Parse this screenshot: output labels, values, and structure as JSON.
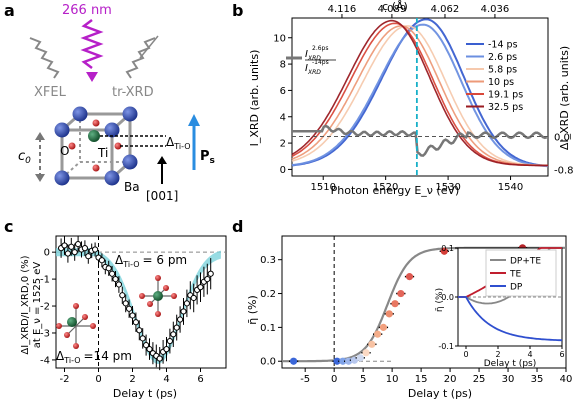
{
  "panel_labels": {
    "a": "a",
    "b": "b",
    "c": "c",
    "d": "d"
  },
  "panel_a": {
    "beam_label": "266 nm",
    "source_left": "XFEL",
    "source_right": "tr-XRD",
    "lattice_param": "c",
    "lattice_param_sub": "0",
    "atoms": [
      "O",
      "Ti",
      "Ba"
    ],
    "displacement_label": "Δ",
    "displacement_sub": "Ti-O",
    "polarization_label": "P",
    "polarization_sub": "s",
    "direction_label": "[001]",
    "colors": {
      "beam": "#b620c8",
      "ba": "#1f3fa8",
      "ti": "#1a6b3a",
      "o": "#d21f1f",
      "arrow_p": "#2a8de0",
      "xray": "#888888"
    }
  },
  "chart_data": [
    {
      "panel": "b",
      "type": "line",
      "xlabel": "Photon energy E_ν (eV)",
      "ylabel": "I_XRD (arb. units)",
      "y2label": "ΔI_XRD (arb. units)",
      "top_axis_label": "c (Å)",
      "top_ticks": [
        "4.116",
        "4.089",
        "4.062",
        "4.036"
      ],
      "xlim": [
        1505,
        1546
      ],
      "ylim": [
        -0.5,
        11.5
      ],
      "x_ticks": [
        1510,
        1520,
        1530,
        1540
      ],
      "y_ticks": [
        0,
        2,
        4,
        6,
        8,
        10
      ],
      "y2_ticks": [
        "0.0",
        "-0.8"
      ],
      "series": [
        {
          "name": "-14 ps",
          "color": "#3a5fd0",
          "center": 1526.5,
          "amp": 11.2,
          "base": 0.2
        },
        {
          "name": "2.6 ps",
          "color": "#6b8fe0",
          "center": 1526.0,
          "amp": 10.8,
          "base": 0.2
        },
        {
          "name": "5.8 ps",
          "color": "#f6c9ad",
          "center": 1523.5,
          "amp": 10.6,
          "base": 0.3
        },
        {
          "name": "10 ps",
          "color": "#ed9a78",
          "center": 1522.5,
          "amp": 10.6,
          "base": 0.3
        },
        {
          "name": "19.1 ps",
          "color": "#d9483a",
          "center": 1521.5,
          "amp": 10.8,
          "base": 0.3
        },
        {
          "name": "32.5 ps",
          "color": "#9a1b22",
          "center": 1521.0,
          "amp": 11.0,
          "base": 0.3
        }
      ],
      "diff_legend": {
        "num": "2.6ps",
        "den": "-14ps",
        "symbol": "I",
        "sub": "XRD"
      },
      "cursor_x": 1525,
      "diff_zero_y": 2.5
    },
    {
      "panel": "c",
      "type": "scatter",
      "xlabel": "Delay t (ps)",
      "ylabel": "ΔI_XRD/I_XRD,0 (%)",
      "ylabel2": "at E_ν = 1525 eV",
      "xlim": [
        -2.5,
        7.5
      ],
      "ylim": [
        -4.3,
        0.6
      ],
      "x_ticks": [
        -2,
        0,
        2,
        4,
        6
      ],
      "y_ticks": [
        0,
        -1,
        -2,
        -3,
        -4
      ],
      "annot_top": "Δ",
      "annot_top_sub": "Ti-O",
      "annot_top_val": "= 6 pm",
      "annot_bot": "Δ",
      "annot_bot_sub": "Ti-O",
      "annot_bot_val": "=14 pm",
      "points": [
        [
          -2.2,
          0.15
        ],
        [
          -2.0,
          0.25
        ],
        [
          -1.8,
          -0.05
        ],
        [
          -1.6,
          0.2
        ],
        [
          -1.4,
          0.0
        ],
        [
          -1.2,
          0.3
        ],
        [
          -1.0,
          0.1
        ],
        [
          -0.8,
          0.15
        ],
        [
          -0.6,
          -0.15
        ],
        [
          -0.4,
          0.05
        ],
        [
          -0.2,
          0.1
        ],
        [
          0.0,
          -0.2
        ],
        [
          0.2,
          -0.3
        ],
        [
          0.4,
          -0.55
        ],
        [
          0.6,
          -0.6
        ],
        [
          0.8,
          -0.8
        ],
        [
          1.0,
          -1.0
        ],
        [
          1.2,
          -1.2
        ],
        [
          1.4,
          -1.6
        ],
        [
          1.6,
          -1.9
        ],
        [
          1.8,
          -2.1
        ],
        [
          2.0,
          -2.35
        ],
        [
          2.2,
          -2.6
        ],
        [
          2.4,
          -2.9
        ],
        [
          2.6,
          -3.2
        ],
        [
          2.8,
          -3.45
        ],
        [
          3.0,
          -3.6
        ],
        [
          3.2,
          -3.75
        ],
        [
          3.4,
          -3.85
        ],
        [
          3.6,
          -3.95
        ],
        [
          3.8,
          -3.7
        ],
        [
          4.0,
          -3.6
        ],
        [
          4.2,
          -3.3
        ],
        [
          4.4,
          -3.05
        ],
        [
          4.6,
          -2.8
        ],
        [
          4.8,
          -2.5
        ],
        [
          5.0,
          -2.2
        ],
        [
          5.2,
          -1.9
        ],
        [
          5.4,
          -1.6
        ],
        [
          5.6,
          -1.7
        ],
        [
          5.8,
          -1.4
        ],
        [
          6.0,
          -1.3
        ],
        [
          6.2,
          -1.1
        ],
        [
          6.4,
          -1.0
        ],
        [
          6.6,
          -0.8
        ]
      ],
      "fit_color": "#7dd3dc"
    },
    {
      "panel": "d",
      "type": "scatter",
      "xlabel": "Delay t (ps)",
      "ylabel": "η̄ (%)",
      "xlim": [
        -9,
        40
      ],
      "ylim": [
        -0.02,
        0.37
      ],
      "x_ticks": [
        -5,
        0,
        5,
        10,
        15,
        20,
        25,
        30,
        35,
        40
      ],
      "y_ticks": [
        0.0,
        0.1,
        0.2,
        0.3
      ],
      "points": [
        {
          "x": -7,
          "y": 0.0,
          "color": "#3a66d8"
        },
        {
          "x": 0.5,
          "y": 0.0,
          "color": "#3a66d8"
        },
        {
          "x": 1.5,
          "y": 0.0,
          "color": "#7fa2e8"
        },
        {
          "x": 2.5,
          "y": 0.0,
          "color": "#9db6ec"
        },
        {
          "x": 3.5,
          "y": 0.003,
          "color": "#b8c8ee"
        },
        {
          "x": 4.5,
          "y": 0.01,
          "color": "#cfd9f0"
        },
        {
          "x": 5.5,
          "y": 0.025,
          "color": "#fbd9c4"
        },
        {
          "x": 6.5,
          "y": 0.05,
          "color": "#f7c2a3"
        },
        {
          "x": 7.5,
          "y": 0.08,
          "color": "#f4ad8a"
        },
        {
          "x": 8.5,
          "y": 0.1,
          "color": "#f19f7d"
        },
        {
          "x": 9.5,
          "y": 0.14,
          "color": "#ec8b6c"
        },
        {
          "x": 10.5,
          "y": 0.17,
          "color": "#e87762"
        },
        {
          "x": 11.5,
          "y": 0.2,
          "color": "#e3665a"
        },
        {
          "x": 13,
          "y": 0.25,
          "color": "#dd5850"
        },
        {
          "x": 19,
          "y": 0.325,
          "color": "#d43e38"
        },
        {
          "x": 32.5,
          "y": 0.335,
          "color": "#b42228"
        }
      ],
      "fit_color": "#888888",
      "inset": {
        "xlabel": "Delay t (ps)",
        "ylabel": "η̄ (%)",
        "xlim": [
          -0.5,
          6
        ],
        "ylim": [
          -0.1,
          0.1
        ],
        "x_ticks": [
          0,
          2,
          4,
          6
        ],
        "y_ticks": [
          0.1,
          0.0,
          -0.1
        ],
        "series": [
          {
            "name": "DP+TE",
            "color": "#888888"
          },
          {
            "name": "TE",
            "color": "#c01e2e"
          },
          {
            "name": "DP",
            "color": "#2f4fcf"
          }
        ]
      }
    }
  ]
}
